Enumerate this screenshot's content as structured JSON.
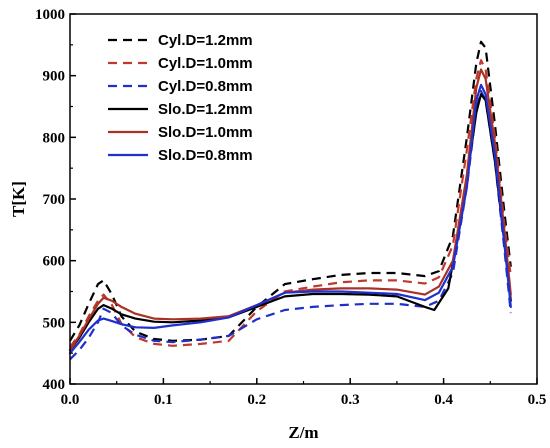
{
  "chart_data": {
    "type": "line",
    "title": "",
    "xlabel": "Z/m",
    "ylabel": "T[K]",
    "xlim": [
      0.0,
      0.5
    ],
    "ylim": [
      400,
      1000
    ],
    "xticks": [
      "0.0",
      "0.1",
      "0.2",
      "0.3",
      "0.4",
      "0.5"
    ],
    "yticks": [
      "400",
      "500",
      "600",
      "700",
      "800",
      "900",
      "1000"
    ],
    "grid": false,
    "legend_position": "top-left",
    "series": [
      {
        "name": "Cyl.D=1.2mm",
        "color": "#000000",
        "dash": "dashed",
        "points": [
          [
            0.0,
            470
          ],
          [
            0.01,
            495
          ],
          [
            0.02,
            530
          ],
          [
            0.03,
            562
          ],
          [
            0.036,
            568
          ],
          [
            0.045,
            545
          ],
          [
            0.055,
            510
          ],
          [
            0.07,
            485
          ],
          [
            0.09,
            473
          ],
          [
            0.11,
            470
          ],
          [
            0.14,
            472
          ],
          [
            0.17,
            478
          ],
          [
            0.2,
            525
          ],
          [
            0.23,
            562
          ],
          [
            0.26,
            570
          ],
          [
            0.29,
            577
          ],
          [
            0.32,
            580
          ],
          [
            0.35,
            580
          ],
          [
            0.38,
            575
          ],
          [
            0.395,
            583
          ],
          [
            0.41,
            640
          ],
          [
            0.425,
            800
          ],
          [
            0.435,
            920
          ],
          [
            0.44,
            955
          ],
          [
            0.445,
            945
          ],
          [
            0.455,
            820
          ],
          [
            0.465,
            680
          ],
          [
            0.472,
            590
          ]
        ]
      },
      {
        "name": "Cyl.D=1.0mm",
        "color": "#c0392b",
        "dash": "dashed",
        "points": [
          [
            0.0,
            460
          ],
          [
            0.01,
            480
          ],
          [
            0.02,
            510
          ],
          [
            0.03,
            535
          ],
          [
            0.036,
            545
          ],
          [
            0.045,
            528
          ],
          [
            0.055,
            498
          ],
          [
            0.07,
            476
          ],
          [
            0.09,
            465
          ],
          [
            0.11,
            462
          ],
          [
            0.14,
            465
          ],
          [
            0.17,
            470
          ],
          [
            0.2,
            518
          ],
          [
            0.23,
            550
          ],
          [
            0.26,
            558
          ],
          [
            0.29,
            565
          ],
          [
            0.32,
            568
          ],
          [
            0.35,
            568
          ],
          [
            0.38,
            563
          ],
          [
            0.395,
            573
          ],
          [
            0.41,
            625
          ],
          [
            0.425,
            780
          ],
          [
            0.435,
            895
          ],
          [
            0.44,
            925
          ],
          [
            0.445,
            910
          ],
          [
            0.455,
            800
          ],
          [
            0.465,
            660
          ],
          [
            0.472,
            575
          ]
        ]
      },
      {
        "name": "Cyl.D=0.8mm",
        "color": "#1f2fc7",
        "dash": "dashed",
        "points": [
          [
            0.0,
            440
          ],
          [
            0.01,
            455
          ],
          [
            0.02,
            475
          ],
          [
            0.03,
            500
          ],
          [
            0.036,
            522
          ],
          [
            0.045,
            515
          ],
          [
            0.055,
            495
          ],
          [
            0.07,
            480
          ],
          [
            0.09,
            470
          ],
          [
            0.11,
            468
          ],
          [
            0.14,
            472
          ],
          [
            0.17,
            478
          ],
          [
            0.2,
            505
          ],
          [
            0.23,
            520
          ],
          [
            0.26,
            525
          ],
          [
            0.29,
            528
          ],
          [
            0.32,
            530
          ],
          [
            0.35,
            530
          ],
          [
            0.38,
            525
          ],
          [
            0.395,
            535
          ],
          [
            0.41,
            580
          ],
          [
            0.425,
            720
          ],
          [
            0.435,
            845
          ],
          [
            0.44,
            875
          ],
          [
            0.445,
            860
          ],
          [
            0.455,
            760
          ],
          [
            0.465,
            620
          ],
          [
            0.472,
            515
          ]
        ]
      },
      {
        "name": "Slo.D=1.2mm",
        "color": "#000000",
        "dash": "solid",
        "points": [
          [
            0.0,
            455
          ],
          [
            0.01,
            475
          ],
          [
            0.02,
            500
          ],
          [
            0.03,
            522
          ],
          [
            0.036,
            528
          ],
          [
            0.045,
            522
          ],
          [
            0.055,
            513
          ],
          [
            0.07,
            506
          ],
          [
            0.09,
            501
          ],
          [
            0.11,
            500
          ],
          [
            0.14,
            503
          ],
          [
            0.17,
            508
          ],
          [
            0.2,
            525
          ],
          [
            0.23,
            542
          ],
          [
            0.26,
            546
          ],
          [
            0.29,
            546
          ],
          [
            0.32,
            545
          ],
          [
            0.35,
            542
          ],
          [
            0.38,
            525
          ],
          [
            0.39,
            520
          ],
          [
            0.405,
            555
          ],
          [
            0.42,
            680
          ],
          [
            0.435,
            840
          ],
          [
            0.44,
            870
          ],
          [
            0.445,
            860
          ],
          [
            0.455,
            760
          ],
          [
            0.465,
            630
          ],
          [
            0.472,
            535
          ]
        ]
      },
      {
        "name": "Slo.D=1.0mm",
        "color": "#a93226",
        "dash": "solid",
        "points": [
          [
            0.0,
            455
          ],
          [
            0.01,
            478
          ],
          [
            0.02,
            505
          ],
          [
            0.03,
            530
          ],
          [
            0.036,
            540
          ],
          [
            0.045,
            535
          ],
          [
            0.055,
            525
          ],
          [
            0.07,
            514
          ],
          [
            0.09,
            506
          ],
          [
            0.11,
            505
          ],
          [
            0.14,
            506
          ],
          [
            0.17,
            510
          ],
          [
            0.2,
            528
          ],
          [
            0.23,
            548
          ],
          [
            0.26,
            553
          ],
          [
            0.29,
            555
          ],
          [
            0.32,
            555
          ],
          [
            0.35,
            553
          ],
          [
            0.38,
            545
          ],
          [
            0.395,
            558
          ],
          [
            0.41,
            600
          ],
          [
            0.425,
            740
          ],
          [
            0.435,
            880
          ],
          [
            0.44,
            910
          ],
          [
            0.445,
            895
          ],
          [
            0.455,
            790
          ],
          [
            0.465,
            650
          ],
          [
            0.472,
            545
          ]
        ]
      },
      {
        "name": "Slo.D=0.8mm",
        "color": "#1f2fd0",
        "dash": "solid",
        "points": [
          [
            0.0,
            450
          ],
          [
            0.01,
            468
          ],
          [
            0.02,
            488
          ],
          [
            0.03,
            503
          ],
          [
            0.036,
            506
          ],
          [
            0.045,
            502
          ],
          [
            0.055,
            497
          ],
          [
            0.07,
            492
          ],
          [
            0.09,
            491
          ],
          [
            0.11,
            495
          ],
          [
            0.14,
            500
          ],
          [
            0.17,
            508
          ],
          [
            0.2,
            528
          ],
          [
            0.23,
            548
          ],
          [
            0.26,
            550
          ],
          [
            0.29,
            550
          ],
          [
            0.32,
            548
          ],
          [
            0.35,
            546
          ],
          [
            0.38,
            536
          ],
          [
            0.395,
            548
          ],
          [
            0.41,
            590
          ],
          [
            0.425,
            720
          ],
          [
            0.435,
            860
          ],
          [
            0.44,
            885
          ],
          [
            0.445,
            870
          ],
          [
            0.455,
            770
          ],
          [
            0.465,
            630
          ],
          [
            0.472,
            525
          ]
        ]
      }
    ]
  }
}
